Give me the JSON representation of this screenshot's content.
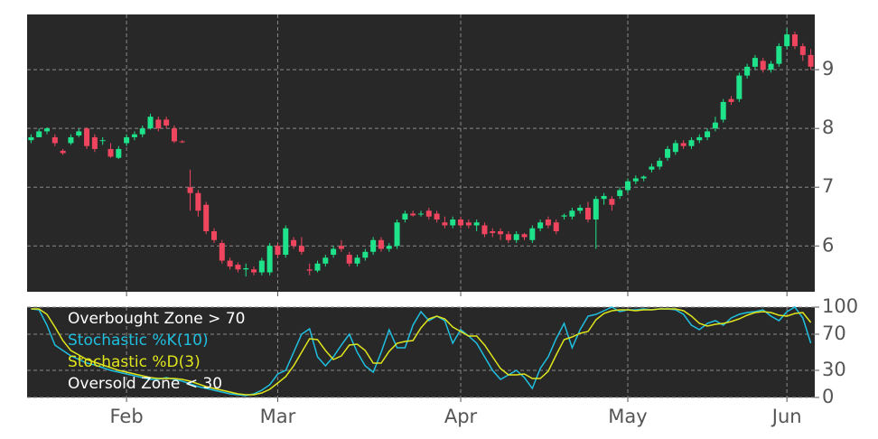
{
  "chart_data": [
    {
      "type": "candlestick",
      "up_color": "#1ee38a",
      "down_color": "#f0455f",
      "open": [
        7.8,
        7.85,
        7.95,
        7.85,
        7.62,
        7.75,
        7.88,
        8.0,
        7.85,
        7.8,
        7.65,
        7.5,
        7.75,
        7.85,
        7.9,
        8.0,
        8.15,
        8.15,
        8.0,
        7.78,
        7.0,
        6.9,
        6.7,
        6.25,
        6.05,
        5.75,
        5.68,
        5.6,
        5.6,
        5.55,
        5.55,
        6.0,
        5.85,
        6.1,
        6.0,
        5.6,
        5.58,
        5.7,
        5.85,
        6.0,
        5.85,
        5.7,
        5.8,
        5.9,
        6.1,
        5.95,
        6.0,
        6.45,
        6.55,
        6.55,
        6.6,
        6.55,
        6.4,
        6.35,
        6.45,
        6.4,
        6.35,
        6.35,
        6.25,
        6.25,
        6.2,
        6.1,
        6.2,
        6.1,
        6.3,
        6.45,
        6.4,
        6.5,
        6.5,
        6.6,
        6.65,
        6.45,
        6.8,
        6.8,
        6.85,
        6.95,
        7.1,
        7.15,
        7.3,
        7.35,
        7.5,
        7.6,
        7.75,
        7.7,
        7.8,
        7.85,
        8.0,
        8.15,
        8.5,
        8.5,
        8.9,
        9.05,
        9.15,
        9.0,
        9.1,
        9.4,
        9.6,
        9.4,
        9.25
      ],
      "high": [
        7.9,
        8.0,
        8.02,
        7.9,
        7.65,
        7.9,
        8.0,
        8.02,
        7.9,
        7.85,
        7.75,
        7.7,
        7.9,
        7.95,
        8.05,
        8.25,
        8.2,
        8.2,
        8.05,
        7.8,
        7.3,
        6.95,
        6.75,
        6.3,
        6.1,
        5.8,
        5.72,
        5.7,
        5.65,
        5.8,
        6.05,
        6.05,
        6.35,
        6.15,
        6.15,
        5.7,
        5.75,
        5.85,
        6.0,
        6.1,
        5.9,
        5.85,
        5.95,
        6.15,
        6.15,
        6.05,
        6.45,
        6.6,
        6.6,
        6.6,
        6.65,
        6.6,
        6.5,
        6.5,
        6.5,
        6.45,
        6.45,
        6.4,
        6.3,
        6.3,
        6.25,
        6.25,
        6.22,
        6.35,
        6.45,
        6.5,
        6.45,
        6.55,
        6.65,
        6.7,
        6.75,
        6.85,
        6.9,
        6.85,
        7.0,
        7.15,
        7.2,
        7.2,
        7.4,
        7.5,
        7.7,
        7.8,
        7.8,
        7.85,
        7.9,
        8.0,
        8.2,
        8.5,
        8.55,
        8.95,
        9.1,
        9.25,
        9.2,
        9.15,
        9.45,
        9.7,
        9.65,
        9.45,
        9.35
      ],
      "low": [
        7.75,
        7.85,
        7.9,
        7.7,
        7.55,
        7.72,
        7.85,
        7.65,
        7.6,
        7.72,
        7.5,
        7.48,
        7.7,
        7.8,
        7.85,
        7.98,
        7.95,
        8.0,
        7.75,
        7.75,
        6.6,
        6.5,
        6.2,
        6.05,
        5.7,
        5.6,
        5.55,
        5.48,
        5.5,
        5.5,
        5.5,
        5.8,
        5.8,
        5.95,
        5.85,
        5.5,
        5.55,
        5.65,
        5.8,
        5.9,
        5.65,
        5.65,
        5.75,
        5.85,
        5.9,
        5.9,
        5.95,
        6.4,
        6.5,
        6.5,
        6.45,
        6.4,
        6.3,
        6.3,
        6.3,
        6.3,
        6.25,
        6.15,
        6.15,
        6.1,
        6.05,
        6.05,
        6.1,
        6.05,
        6.25,
        6.3,
        6.2,
        6.45,
        6.45,
        6.55,
        6.4,
        5.95,
        6.7,
        6.6,
        6.8,
        6.9,
        7.05,
        7.1,
        7.25,
        7.3,
        7.45,
        7.55,
        7.65,
        7.65,
        7.75,
        7.8,
        7.95,
        8.1,
        8.4,
        8.45,
        8.85,
        9.0,
        8.95,
        8.95,
        9.05,
        9.35,
        9.35,
        9.15,
        9.0
      ],
      "close": [
        7.85,
        7.95,
        8.0,
        7.75,
        7.58,
        7.85,
        7.95,
        7.7,
        7.65,
        7.8,
        7.52,
        7.65,
        7.85,
        7.9,
        8.0,
        8.2,
        8.0,
        8.05,
        7.78,
        7.77,
        6.9,
        6.6,
        6.25,
        6.1,
        5.75,
        5.65,
        5.6,
        5.62,
        5.55,
        5.75,
        6.0,
        5.85,
        6.3,
        6.0,
        5.9,
        5.58,
        5.7,
        5.8,
        5.95,
        5.95,
        5.7,
        5.8,
        5.9,
        6.1,
        5.95,
        6.0,
        6.4,
        6.55,
        6.52,
        6.55,
        6.5,
        6.45,
        6.35,
        6.45,
        6.35,
        6.35,
        6.4,
        6.2,
        6.22,
        6.2,
        6.1,
        6.2,
        6.15,
        6.3,
        6.4,
        6.35,
        6.25,
        6.52,
        6.6,
        6.65,
        6.45,
        6.8,
        6.85,
        6.7,
        6.95,
        7.1,
        7.15,
        7.18,
        7.35,
        7.45,
        7.65,
        7.75,
        7.7,
        7.8,
        7.85,
        7.95,
        8.1,
        8.45,
        8.45,
        8.9,
        9.05,
        9.2,
        9.0,
        9.1,
        9.4,
        9.6,
        9.4,
        9.25,
        9.05
      ],
      "ylim": [
        5.22,
        9.94
      ],
      "yticks": [
        6,
        7,
        8,
        9
      ],
      "grid": true
    },
    {
      "type": "line",
      "categories": [
        null,
        null,
        null,
        null,
        null,
        null,
        null,
        null,
        null,
        null,
        null,
        null,
        "Feb",
        null,
        null,
        null,
        null,
        null,
        null,
        null,
        null,
        null,
        null,
        null,
        null,
        null,
        null,
        null,
        null,
        null,
        null,
        "Mar",
        null,
        null,
        null,
        null,
        null,
        null,
        null,
        null,
        null,
        null,
        null,
        null,
        null,
        null,
        null,
        null,
        null,
        null,
        null,
        null,
        null,
        null,
        "Apr",
        null,
        null,
        null,
        null,
        null,
        null,
        null,
        null,
        null,
        null,
        null,
        null,
        null,
        null,
        null,
        null,
        null,
        null,
        null,
        null,
        "May",
        null,
        null,
        null,
        null,
        null,
        null,
        null,
        null,
        null,
        null,
        null,
        null,
        null,
        null,
        null,
        null,
        null,
        null,
        null,
        "Jun",
        null,
        null,
        null
      ],
      "annotations": [
        "Overbought Zone > 70",
        "Oversold Zone < 30"
      ],
      "series": [
        {
          "name": "Stochastic %K(10)",
          "color": "#1fbfe0",
          "values": [
            98,
            97,
            80,
            58,
            52,
            46,
            42,
            38,
            36,
            33,
            30,
            28,
            26,
            24,
            22,
            20,
            20,
            22,
            20,
            18,
            15,
            12,
            10,
            8,
            6,
            4,
            3,
            2,
            4,
            8,
            14,
            26,
            30,
            50,
            70,
            76,
            45,
            35,
            45,
            58,
            70,
            50,
            35,
            28,
            50,
            75,
            55,
            55,
            80,
            95,
            85,
            90,
            85,
            60,
            75,
            68,
            60,
            45,
            30,
            20,
            25,
            30,
            22,
            10,
            32,
            45,
            65,
            82,
            55,
            75,
            90,
            92,
            96,
            100,
            95,
            97,
            97,
            98,
            97,
            98,
            98,
            97,
            92,
            80,
            75,
            82,
            85,
            80,
            88,
            92,
            94,
            95,
            97,
            90,
            85,
            95,
            100,
            88,
            60
          ]
        },
        {
          "name": "Stochastic %D(3)",
          "color": "#dfe51c",
          "values": [
            98,
            98,
            92,
            78,
            63,
            52,
            47,
            42,
            39,
            36,
            33,
            30,
            28,
            26,
            24,
            22,
            21,
            21,
            21,
            20,
            18,
            15,
            12,
            10,
            8,
            6,
            4,
            3,
            3,
            5,
            9,
            16,
            23,
            35,
            50,
            65,
            64,
            52,
            42,
            46,
            58,
            59,
            52,
            38,
            38,
            51,
            60,
            62,
            63,
            77,
            87,
            90,
            87,
            78,
            73,
            68,
            68,
            58,
            45,
            32,
            25,
            25,
            26,
            21,
            21,
            29,
            47,
            64,
            67,
            71,
            73,
            86,
            93,
            96,
            97,
            97,
            96,
            97,
            97,
            98,
            98,
            98,
            96,
            90,
            82,
            79,
            81,
            82,
            84,
            87,
            91,
            94,
            95,
            94,
            91,
            90,
            93,
            94,
            83
          ]
        }
      ],
      "ylim": [
        0,
        100
      ],
      "yticks": [
        0,
        30,
        70,
        100
      ],
      "grid": true
    }
  ]
}
